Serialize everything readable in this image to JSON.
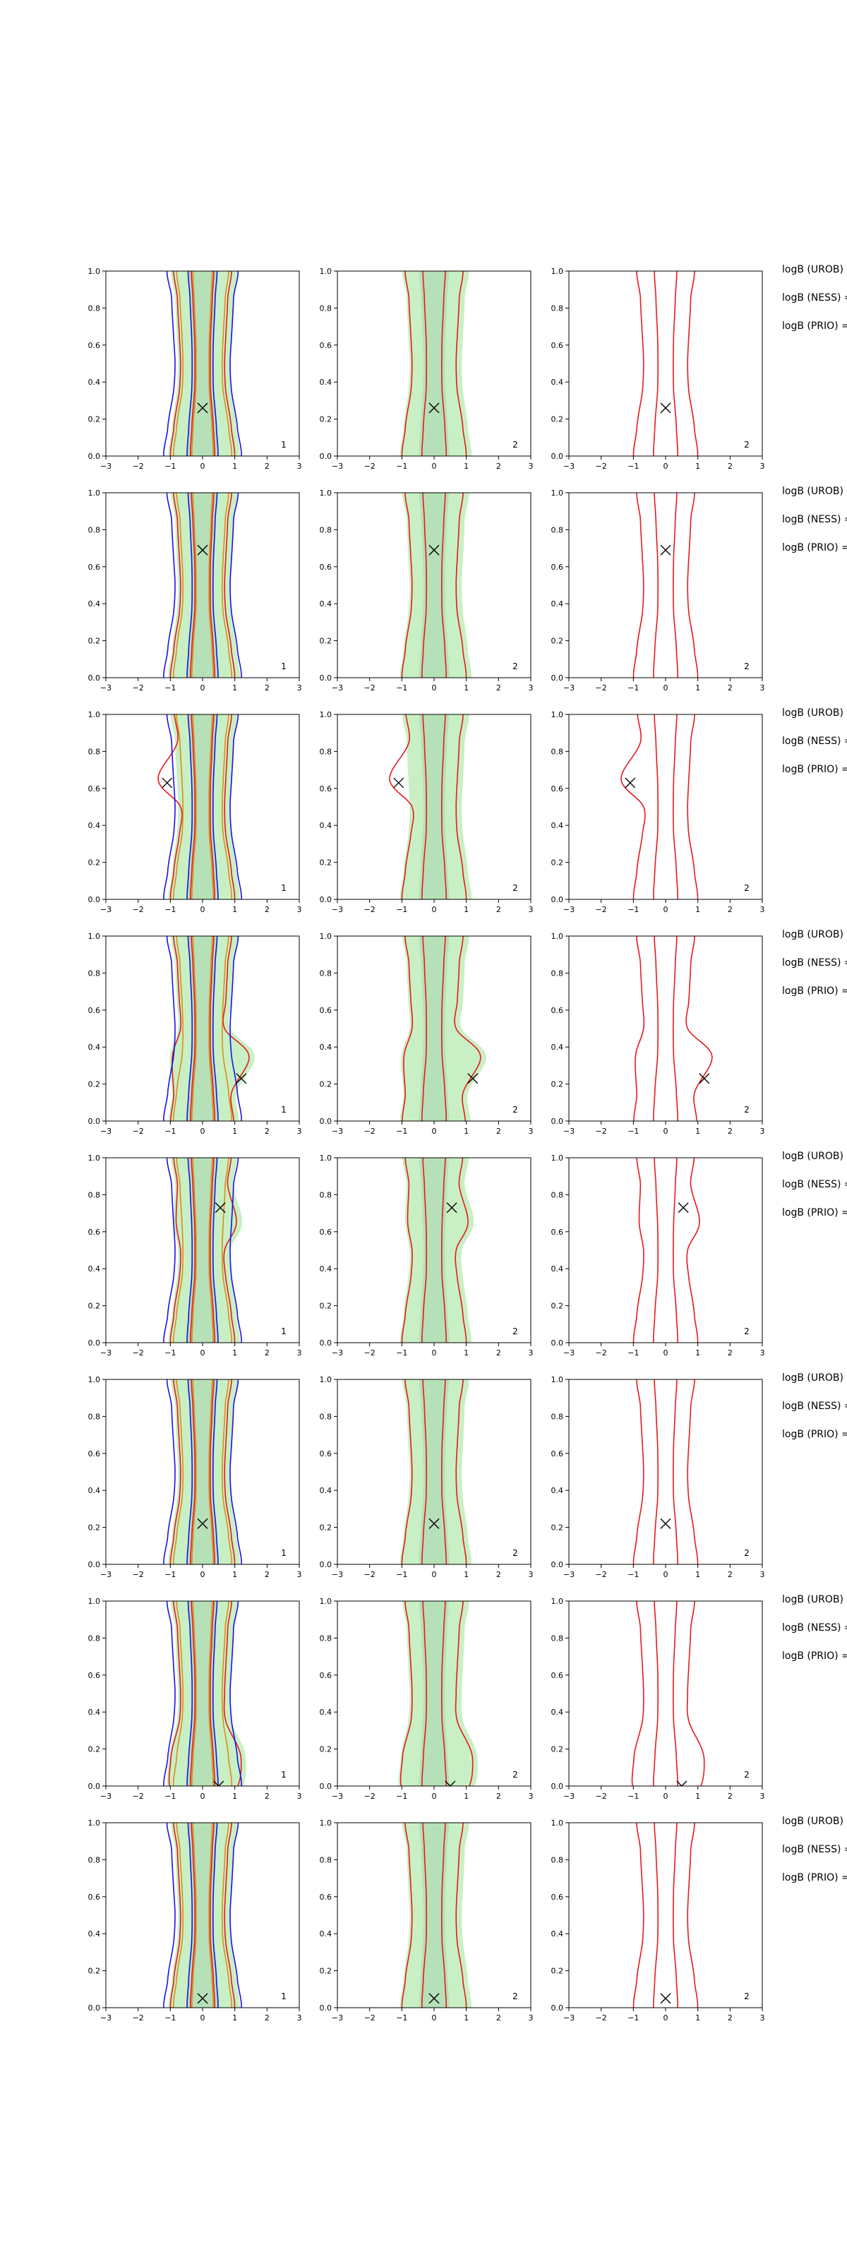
{
  "figure": {
    "row_texts": [
      "logB (UROB) =",
      "logB (NESS) =",
      "logB (PRIO) ="
    ],
    "colors": {
      "red": "#e8191c",
      "blue": "#1a10f0",
      "orange": "#e08a1c",
      "fill_light": "#c8f0c4",
      "fill_dark": "#aad6b0",
      "axis": "#000000"
    }
  },
  "chart_data": [
    {
      "type": "contour",
      "row": 1,
      "column": 1,
      "panel_label": "1",
      "xlim": [
        -3,
        3
      ],
      "ylim": [
        0,
        1
      ],
      "xticks": [
        "−3",
        "−2",
        "−1",
        "0",
        "1",
        "2",
        "3"
      ],
      "yticks": [
        "0.0",
        "0.2",
        "0.4",
        "0.6",
        "0.8",
        "1.0"
      ],
      "marker": {
        "x": 0.0,
        "y": 0.26
      },
      "contour_series": [
        "red",
        "blue",
        "orange"
      ],
      "filled_regions": true
    },
    {
      "type": "contour",
      "row": 1,
      "column": 2,
      "panel_label": "2",
      "xlim": [
        -3,
        3
      ],
      "ylim": [
        0,
        1
      ],
      "xticks": [
        "−3",
        "−2",
        "−1",
        "0",
        "1",
        "2",
        "3"
      ],
      "yticks": [
        "0.0",
        "0.2",
        "0.4",
        "0.6",
        "0.8",
        "1.0"
      ],
      "marker": {
        "x": 0.0,
        "y": 0.26
      },
      "contour_series": [
        "red"
      ],
      "filled_regions": true
    },
    {
      "type": "contour",
      "row": 1,
      "column": 3,
      "panel_label": "2",
      "xlim": [
        -3,
        3
      ],
      "ylim": [
        0,
        1
      ],
      "xticks": [
        "−3",
        "−2",
        "−1",
        "0",
        "1",
        "2",
        "3"
      ],
      "yticks": [
        "0.0",
        "0.2",
        "0.4",
        "0.6",
        "0.8",
        "1.0"
      ],
      "marker": {
        "x": 0.0,
        "y": 0.26
      },
      "contour_series": [
        "red"
      ],
      "filled_regions": false
    },
    {
      "type": "contour",
      "row": 2,
      "column": 1,
      "panel_label": "1",
      "xlim": [
        -3,
        3
      ],
      "ylim": [
        0,
        1
      ],
      "xticks": [
        "−3",
        "−2",
        "−1",
        "0",
        "1",
        "2",
        "3"
      ],
      "yticks": [
        "0.0",
        "0.2",
        "0.4",
        "0.6",
        "0.8",
        "1.0"
      ],
      "marker": {
        "x": 0.0,
        "y": 0.69
      },
      "contour_series": [
        "red",
        "blue",
        "orange"
      ],
      "filled_regions": true
    },
    {
      "type": "contour",
      "row": 2,
      "column": 2,
      "panel_label": "2",
      "xlim": [
        -3,
        3
      ],
      "ylim": [
        0,
        1
      ],
      "xticks": [
        "−3",
        "−2",
        "−1",
        "0",
        "1",
        "2",
        "3"
      ],
      "yticks": [
        "0.0",
        "0.2",
        "0.4",
        "0.6",
        "0.8",
        "1.0"
      ],
      "marker": {
        "x": 0.0,
        "y": 0.69
      },
      "contour_series": [
        "red"
      ],
      "filled_regions": true
    },
    {
      "type": "contour",
      "row": 2,
      "column": 3,
      "panel_label": "2",
      "xlim": [
        -3,
        3
      ],
      "ylim": [
        0,
        1
      ],
      "xticks": [
        "−3",
        "−2",
        "−1",
        "0",
        "1",
        "2",
        "3"
      ],
      "yticks": [
        "0.0",
        "0.2",
        "0.4",
        "0.6",
        "0.8",
        "1.0"
      ],
      "marker": {
        "x": 0.0,
        "y": 0.69
      },
      "contour_series": [
        "red"
      ],
      "filled_regions": false
    },
    {
      "type": "contour",
      "row": 3,
      "column": 1,
      "panel_label": "1",
      "xlim": [
        -3,
        3
      ],
      "ylim": [
        0,
        1
      ],
      "xticks": [
        "−3",
        "−2",
        "−1",
        "0",
        "1",
        "2",
        "3"
      ],
      "yticks": [
        "0.0",
        "0.2",
        "0.4",
        "0.6",
        "0.8",
        "1.0"
      ],
      "marker": {
        "x": -1.1,
        "y": 0.63
      },
      "contour_series": [
        "red",
        "blue",
        "orange"
      ],
      "filled_regions": true
    },
    {
      "type": "contour",
      "row": 3,
      "column": 2,
      "panel_label": "2",
      "xlim": [
        -3,
        3
      ],
      "ylim": [
        0,
        1
      ],
      "xticks": [
        "−3",
        "−2",
        "−1",
        "0",
        "1",
        "2",
        "3"
      ],
      "yticks": [
        "0.0",
        "0.2",
        "0.4",
        "0.6",
        "0.8",
        "1.0"
      ],
      "marker": {
        "x": -1.1,
        "y": 0.63
      },
      "contour_series": [
        "red"
      ],
      "filled_regions": true
    },
    {
      "type": "contour",
      "row": 3,
      "column": 3,
      "panel_label": "2",
      "xlim": [
        -3,
        3
      ],
      "ylim": [
        0,
        1
      ],
      "xticks": [
        "−3",
        "−2",
        "−1",
        "0",
        "1",
        "2",
        "3"
      ],
      "yticks": [
        "0.0",
        "0.2",
        "0.4",
        "0.6",
        "0.8",
        "1.0"
      ],
      "marker": {
        "x": -1.1,
        "y": 0.63
      },
      "contour_series": [
        "red"
      ],
      "filled_regions": false
    },
    {
      "type": "contour",
      "row": 4,
      "column": 1,
      "panel_label": "1",
      "xlim": [
        -3,
        3
      ],
      "ylim": [
        0,
        1
      ],
      "xticks": [
        "−3",
        "−2",
        "−1",
        "0",
        "1",
        "2",
        "3"
      ],
      "yticks": [
        "0.0",
        "0.2",
        "0.4",
        "0.6",
        "0.8",
        "1.0"
      ],
      "marker": {
        "x": 1.2,
        "y": 0.23
      },
      "contour_series": [
        "red",
        "blue",
        "orange"
      ],
      "filled_regions": true
    },
    {
      "type": "contour",
      "row": 4,
      "column": 2,
      "panel_label": "2",
      "xlim": [
        -3,
        3
      ],
      "ylim": [
        0,
        1
      ],
      "xticks": [
        "−3",
        "−2",
        "−1",
        "0",
        "1",
        "2",
        "3"
      ],
      "yticks": [
        "0.0",
        "0.2",
        "0.4",
        "0.6",
        "0.8",
        "1.0"
      ],
      "marker": {
        "x": 1.2,
        "y": 0.23
      },
      "contour_series": [
        "red"
      ],
      "filled_regions": true
    },
    {
      "type": "contour",
      "row": 4,
      "column": 3,
      "panel_label": "2",
      "xlim": [
        -3,
        3
      ],
      "ylim": [
        0,
        1
      ],
      "xticks": [
        "−3",
        "−2",
        "−1",
        "0",
        "1",
        "2",
        "3"
      ],
      "yticks": [
        "0.0",
        "0.2",
        "0.4",
        "0.6",
        "0.8",
        "1.0"
      ],
      "marker": {
        "x": 1.2,
        "y": 0.23
      },
      "contour_series": [
        "red"
      ],
      "filled_regions": false
    },
    {
      "type": "contour",
      "row": 5,
      "column": 1,
      "panel_label": "1",
      "xlim": [
        -3,
        3
      ],
      "ylim": [
        0,
        1
      ],
      "xticks": [
        "−3",
        "−2",
        "−1",
        "0",
        "1",
        "2",
        "3"
      ],
      "yticks": [
        "0.0",
        "0.2",
        "0.4",
        "0.6",
        "0.8",
        "1.0"
      ],
      "marker": {
        "x": 0.55,
        "y": 0.73
      },
      "contour_series": [
        "red",
        "blue",
        "orange"
      ],
      "filled_regions": true
    },
    {
      "type": "contour",
      "row": 5,
      "column": 2,
      "panel_label": "2",
      "xlim": [
        -3,
        3
      ],
      "ylim": [
        0,
        1
      ],
      "xticks": [
        "−3",
        "−2",
        "−1",
        "0",
        "1",
        "2",
        "3"
      ],
      "yticks": [
        "0.0",
        "0.2",
        "0.4",
        "0.6",
        "0.8",
        "1.0"
      ],
      "marker": {
        "x": 0.55,
        "y": 0.73
      },
      "contour_series": [
        "red"
      ],
      "filled_regions": true
    },
    {
      "type": "contour",
      "row": 5,
      "column": 3,
      "panel_label": "2",
      "xlim": [
        -3,
        3
      ],
      "ylim": [
        0,
        1
      ],
      "xticks": [
        "−3",
        "−2",
        "−1",
        "0",
        "1",
        "2",
        "3"
      ],
      "yticks": [
        "0.0",
        "0.2",
        "0.4",
        "0.6",
        "0.8",
        "1.0"
      ],
      "marker": {
        "x": 0.55,
        "y": 0.73
      },
      "contour_series": [
        "red"
      ],
      "filled_regions": false
    },
    {
      "type": "contour",
      "row": 6,
      "column": 1,
      "panel_label": "1",
      "xlim": [
        -3,
        3
      ],
      "ylim": [
        0,
        1
      ],
      "xticks": [
        "−3",
        "−2",
        "−1",
        "0",
        "1",
        "2",
        "3"
      ],
      "yticks": [
        "0.0",
        "0.2",
        "0.4",
        "0.6",
        "0.8",
        "1.0"
      ],
      "marker": {
        "x": 0.0,
        "y": 0.22
      },
      "contour_series": [
        "red",
        "blue",
        "orange"
      ],
      "filled_regions": true
    },
    {
      "type": "contour",
      "row": 6,
      "column": 2,
      "panel_label": "2",
      "xlim": [
        -3,
        3
      ],
      "ylim": [
        0,
        1
      ],
      "xticks": [
        "−3",
        "−2",
        "−1",
        "0",
        "1",
        "2",
        "3"
      ],
      "yticks": [
        "0.0",
        "0.2",
        "0.4",
        "0.6",
        "0.8",
        "1.0"
      ],
      "marker": {
        "x": 0.0,
        "y": 0.22
      },
      "contour_series": [
        "red"
      ],
      "filled_regions": true
    },
    {
      "type": "contour",
      "row": 6,
      "column": 3,
      "panel_label": "2",
      "xlim": [
        -3,
        3
      ],
      "ylim": [
        0,
        1
      ],
      "xticks": [
        "−3",
        "−2",
        "−1",
        "0",
        "1",
        "2",
        "3"
      ],
      "yticks": [
        "0.0",
        "0.2",
        "0.4",
        "0.6",
        "0.8",
        "1.0"
      ],
      "marker": {
        "x": 0.0,
        "y": 0.22
      },
      "contour_series": [
        "red"
      ],
      "filled_regions": false
    },
    {
      "type": "contour",
      "row": 7,
      "column": 1,
      "panel_label": "1",
      "xlim": [
        -3,
        3
      ],
      "ylim": [
        0,
        1
      ],
      "xticks": [
        "−3",
        "−2",
        "−1",
        "0",
        "1",
        "2",
        "3"
      ],
      "yticks": [
        "0.0",
        "0.2",
        "0.4",
        "0.6",
        "0.8",
        "1.0"
      ],
      "marker": {
        "x": 0.5,
        "y": 0.0
      },
      "contour_series": [
        "red",
        "blue",
        "orange"
      ],
      "filled_regions": true
    },
    {
      "type": "contour",
      "row": 7,
      "column": 2,
      "panel_label": "2",
      "xlim": [
        -3,
        3
      ],
      "ylim": [
        0,
        1
      ],
      "xticks": [
        "−3",
        "−2",
        "−1",
        "0",
        "1",
        "2",
        "3"
      ],
      "yticks": [
        "0.0",
        "0.2",
        "0.4",
        "0.6",
        "0.8",
        "1.0"
      ],
      "marker": {
        "x": 0.5,
        "y": 0.0
      },
      "contour_series": [
        "red"
      ],
      "filled_regions": true
    },
    {
      "type": "contour",
      "row": 7,
      "column": 3,
      "panel_label": "2",
      "xlim": [
        -3,
        3
      ],
      "ylim": [
        0,
        1
      ],
      "xticks": [
        "−3",
        "−2",
        "−1",
        "0",
        "1",
        "2",
        "3"
      ],
      "yticks": [
        "0.0",
        "0.2",
        "0.4",
        "0.6",
        "0.8",
        "1.0"
      ],
      "marker": {
        "x": 0.5,
        "y": 0.0
      },
      "contour_series": [
        "red"
      ],
      "filled_regions": false
    },
    {
      "type": "contour",
      "row": 8,
      "column": 1,
      "panel_label": "1",
      "xlim": [
        -3,
        3
      ],
      "ylim": [
        0,
        1
      ],
      "xticks": [
        "−3",
        "−2",
        "−1",
        "0",
        "1",
        "2",
        "3"
      ],
      "yticks": [
        "0.0",
        "0.2",
        "0.4",
        "0.6",
        "0.8",
        "1.0"
      ],
      "marker": {
        "x": 0.0,
        "y": 0.05
      },
      "contour_series": [
        "red",
        "blue",
        "orange"
      ],
      "filled_regions": true
    },
    {
      "type": "contour",
      "row": 8,
      "column": 2,
      "panel_label": "2",
      "xlim": [
        -3,
        3
      ],
      "ylim": [
        0,
        1
      ],
      "xticks": [
        "−3",
        "−2",
        "−1",
        "0",
        "1",
        "2",
        "3"
      ],
      "yticks": [
        "0.0",
        "0.2",
        "0.4",
        "0.6",
        "0.8",
        "1.0"
      ],
      "marker": {
        "x": 0.0,
        "y": 0.05
      },
      "contour_series": [
        "red"
      ],
      "filled_regions": true
    },
    {
      "type": "contour",
      "row": 8,
      "column": 3,
      "panel_label": "2",
      "xlim": [
        -3,
        3
      ],
      "ylim": [
        0,
        1
      ],
      "xticks": [
        "−3",
        "−2",
        "−1",
        "0",
        "1",
        "2",
        "3"
      ],
      "yticks": [
        "0.0",
        "0.2",
        "0.4",
        "0.6",
        "0.8",
        "1.0"
      ],
      "marker": {
        "x": 0.0,
        "y": 0.05
      },
      "contour_series": [
        "red"
      ],
      "filled_regions": false
    }
  ]
}
